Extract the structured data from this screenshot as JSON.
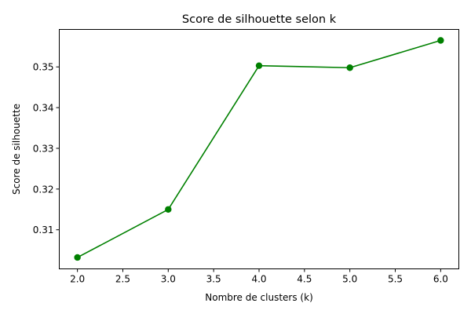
{
  "chart_data": {
    "type": "line",
    "title": "Score de silhouette selon k",
    "xlabel": "Nombre de clusters (k)",
    "ylabel": "Score de silhouette",
    "x": [
      2,
      3,
      4,
      5,
      6
    ],
    "series": [
      {
        "values": [
          0.3032,
          0.315,
          0.3503,
          0.3498,
          0.3565
        ],
        "color": "#008000",
        "marker": "circle"
      }
    ],
    "xlim": [
      1.8,
      6.2
    ],
    "ylim": [
      0.3004,
      0.3592
    ],
    "xticks": [
      2.0,
      2.5,
      3.0,
      3.5,
      4.0,
      4.5,
      5.0,
      5.5,
      6.0
    ],
    "xtick_labels": [
      "2.0",
      "2.5",
      "3.0",
      "3.5",
      "4.0",
      "4.5",
      "5.0",
      "5.5",
      "6.0"
    ],
    "yticks": [
      0.31,
      0.32,
      0.33,
      0.34,
      0.35
    ],
    "ytick_labels": [
      "0.31",
      "0.32",
      "0.33",
      "0.34",
      "0.35"
    ],
    "grid": false,
    "legend": false
  }
}
